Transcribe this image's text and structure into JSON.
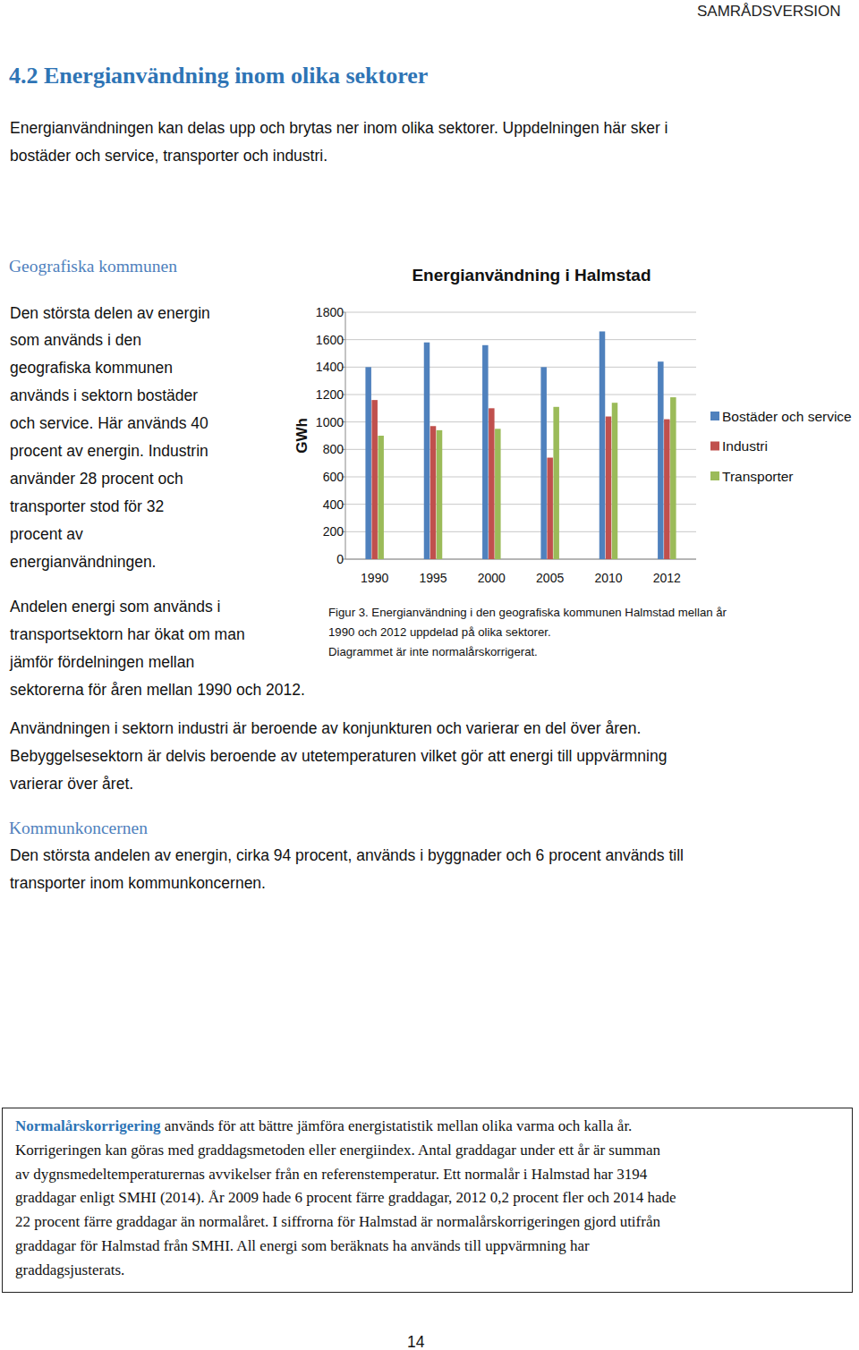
{
  "header": {
    "label": "SAMRÅDSVERSION"
  },
  "heading": "4.2 Energianvändning inom olika sektorer",
  "intro": [
    "Energianvändningen kan delas upp och brytas ner inom olika sektorer. Uppdelningen här sker i",
    "bostäder och service, transporter och industri."
  ],
  "geo": {
    "title": "Geografiska kommunen",
    "lines": [
      "Den största delen av energin",
      "som används i den",
      "geografiska kommunen",
      "används i sektorn bostäder",
      "och service. Här används 40",
      "procent av energin. Industrin",
      "använder 28 procent och",
      "transporter stod för 32",
      "procent av",
      "energianvändningen."
    ],
    "lines2": [
      "Andelen energi som används i",
      "transportsektorn har ökat om man",
      "jämför fördelningen mellan",
      "sektorerna för åren mellan 1990 och 2012."
    ]
  },
  "chart_data": {
    "type": "bar",
    "title": "Energianvändning i Halmstad",
    "y_label": "GWh",
    "categories": [
      "1990",
      "1995",
      "2000",
      "2005",
      "2010",
      "2012"
    ],
    "series": [
      {
        "name": "Bostäder och service",
        "color": "#4f81bd",
        "values": [
          1400,
          1580,
          1560,
          1400,
          1660,
          1440
        ]
      },
      {
        "name": "Industri",
        "color": "#c0504d",
        "values": [
          1160,
          970,
          1100,
          740,
          1040,
          1020
        ]
      },
      {
        "name": "Transporter",
        "color": "#9bbb59",
        "values": [
          900,
          940,
          950,
          1110,
          1140,
          1180
        ]
      }
    ],
    "ylim": [
      0,
      1800
    ],
    "yticks": [
      0,
      200,
      400,
      600,
      800,
      1000,
      1200,
      1400,
      1600,
      1800
    ],
    "grid": true,
    "legend": "right"
  },
  "caption": [
    "Figur 3. Energianvändning i den geografiska kommunen Halmstad mellan år",
    "1990 och 2012 uppdelad på olika sektorer.",
    "Diagrammet är inte normalårskorrigerat."
  ],
  "paragraph": [
    "Användningen i sektorn industri är beroende av konjunkturen och varierar en del över åren.",
    "Bebyggelsesektorn är delvis beroende av utetemperaturen vilket gör att energi till uppvärmning",
    "varierar över året."
  ],
  "concern": {
    "title": "Kommunkoncernen",
    "lines": [
      "Den största andelen av energin, cirka 94 procent, används i byggnader och 6 procent används till",
      "transporter inom kommunkoncernen."
    ]
  },
  "box": {
    "term": "Normalårskorrigering",
    "first": " används för att bättre jämföra energistatistik mellan olika varma och kalla år.",
    "lines": [
      "Korrigeringen kan göras med graddagsmetoden eller energiindex. Antal graddagar under ett år är summan",
      "av dygnsmedeltemperaturernas avvikelser från en referenstemperatur. Ett normalår i Halmstad har 3194",
      "graddagar enligt SMHI (2014). År 2009 hade 6 procent färre graddagar, 2012 0,2 procent fler och 2014 hade",
      "22 procent färre graddagar än normalåret. I siffrorna för Halmstad är normalårskorrigeringen gjord utifrån",
      "graddagar för Halmstad från SMHI. All energi som beräknats ha används till uppvärmning har",
      "graddagsjusterats."
    ]
  },
  "page_number": "14"
}
